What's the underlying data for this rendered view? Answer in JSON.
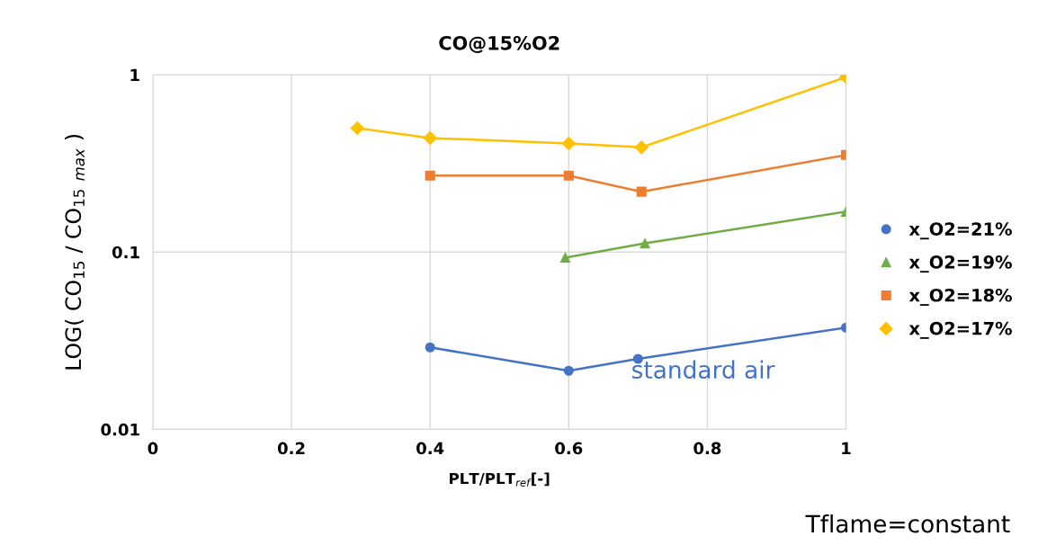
{
  "chart_data": {
    "type": "line",
    "title": "CO@15%O2",
    "xlabel": "PLT/PLT$_{ref}$[-]",
    "ylabel": "LOG( CO$_{15}$ / CO$_{15}$ $_{max}$ )",
    "log": "y",
    "xlim": [
      0,
      1
    ],
    "xticks": [
      0,
      0.2,
      0.4,
      0.6,
      0.8,
      1
    ],
    "ylim": [
      0.01,
      1
    ],
    "yticks": [
      0.01,
      0.1,
      1
    ],
    "grid": true,
    "legend": "right",
    "series": [
      {
        "name": "x_O2=21%",
        "color": "#4472c4",
        "marker": "circle",
        "x": [
          0.4,
          0.6,
          0.7,
          1
        ],
        "values": [
          0.029,
          0.0214,
          0.025,
          0.0375
        ]
      },
      {
        "name": "x_O2=19%",
        "color": "#70ad47",
        "marker": "triangle",
        "x": [
          0.595,
          0.71,
          1
        ],
        "values": [
          0.093,
          0.112,
          0.169
        ]
      },
      {
        "name": "x_O2=18%",
        "color": "#ed7d31",
        "marker": "square",
        "x": [
          0.4,
          0.6,
          0.705,
          1
        ],
        "values": [
          0.27,
          0.27,
          0.219,
          0.353
        ]
      },
      {
        "name": "x_O2=17%",
        "color": "#ffc000",
        "marker": "diamond",
        "x": [
          0.295,
          0.4,
          0.6,
          0.705,
          1
        ],
        "values": [
          0.5,
          0.44,
          0.41,
          0.39,
          0.97
        ]
      }
    ],
    "annotations": [
      "standard air",
      "Tflame=constant"
    ]
  }
}
